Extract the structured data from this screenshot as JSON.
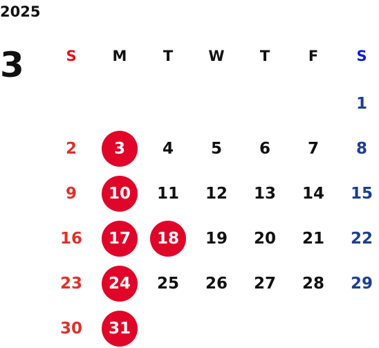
{
  "year": "2025",
  "month": "3",
  "weekdays": [
    "S",
    "M",
    "T",
    "W",
    "T",
    "F",
    "S"
  ],
  "weekday_colors": [
    "#e8101a",
    "#111111",
    "#111111",
    "#111111",
    "#111111",
    "#111111",
    "#0a1fd0"
  ],
  "day_colors": [
    "#e0302a",
    "#111111",
    "#111111",
    "#111111",
    "#111111",
    "#111111",
    "#1c3e94"
  ],
  "circle_color": "#e0062a",
  "circled": [
    3,
    10,
    17,
    18,
    24,
    31
  ],
  "weeks": [
    [
      null,
      null,
      null,
      null,
      null,
      null,
      1
    ],
    [
      2,
      3,
      4,
      5,
      6,
      7,
      8
    ],
    [
      9,
      10,
      11,
      12,
      13,
      14,
      15
    ],
    [
      16,
      17,
      18,
      19,
      20,
      21,
      22
    ],
    [
      23,
      24,
      25,
      26,
      27,
      28,
      29
    ],
    [
      30,
      31,
      null,
      null,
      null,
      null,
      null
    ]
  ]
}
